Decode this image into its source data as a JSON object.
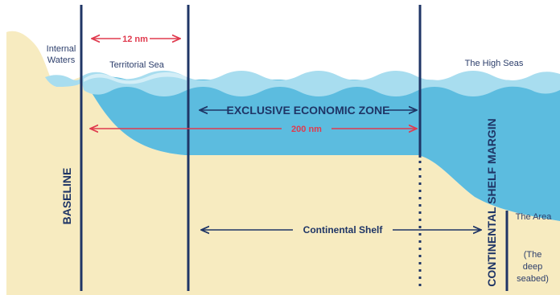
{
  "colors": {
    "land": "#f7ebc0",
    "water_deep": "#5cbcdf",
    "water_light": "#a8ddef",
    "water_pale": "#d3eef7",
    "line": "#1f3566",
    "red": "#e03a4e"
  },
  "labels": {
    "internal_waters_1": "Internal",
    "internal_waters_2": "Waters",
    "territorial_sea": "Territorial Sea",
    "high_seas": "The High Seas",
    "twelve_nm": "12 nm",
    "eez": "EXCLUSIVE ECONOMIC ZONE",
    "two_hundred_nm": "200 nm",
    "baseline": "BASELINE",
    "continental_shelf": "Continental Shelf",
    "shelf_margin": "CONTINENTAL SHELF MARGIN",
    "the_area": "The Area",
    "deep_seabed_1": "(The",
    "deep_seabed_2": "deep",
    "deep_seabed_3": "seabed)"
  }
}
